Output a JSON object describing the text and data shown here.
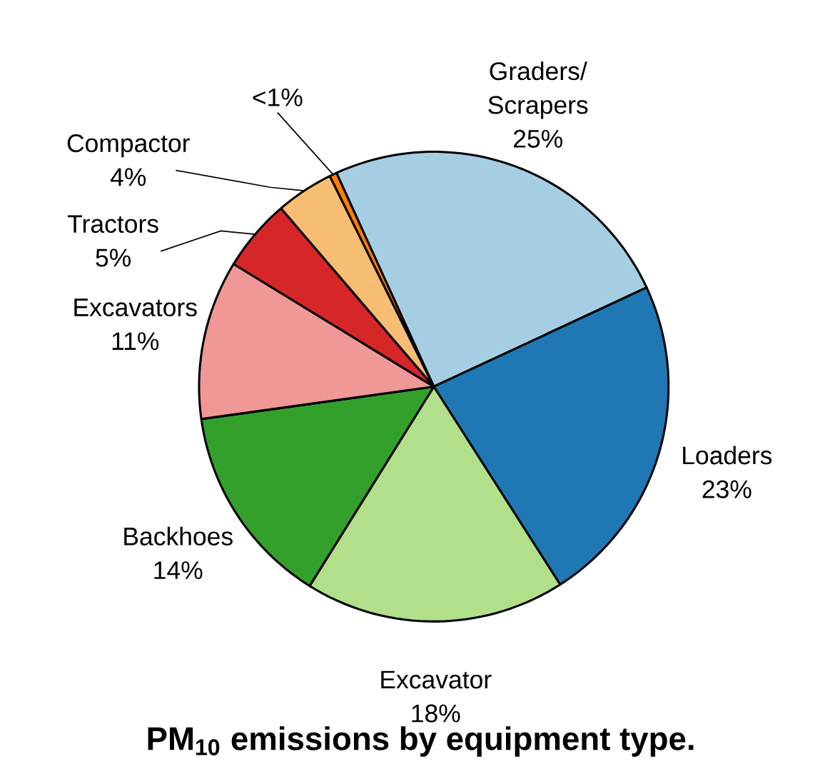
{
  "chart_data": {
    "type": "pie",
    "title": "PM$_{10}$ emissions by equipment type.",
    "categories": [
      "Graders/ Scrapers",
      "Loaders",
      "Excavator",
      "Backhoes",
      "Excavators",
      "Tractors",
      "Compactor",
      null
    ],
    "values": [
      25,
      23,
      18,
      14,
      11,
      5,
      4,
      0.5
    ],
    "value_labels": [
      "25%",
      "23%",
      "18%",
      "14%",
      "11%",
      "5%",
      "4%",
      "<1%"
    ],
    "colors": [
      "#a6cee3",
      "#1f78b4",
      "#b2df8a",
      "#33a02c",
      "#f09896",
      "#d62728",
      "#f7bd72",
      "#ff7f00"
    ]
  }
}
